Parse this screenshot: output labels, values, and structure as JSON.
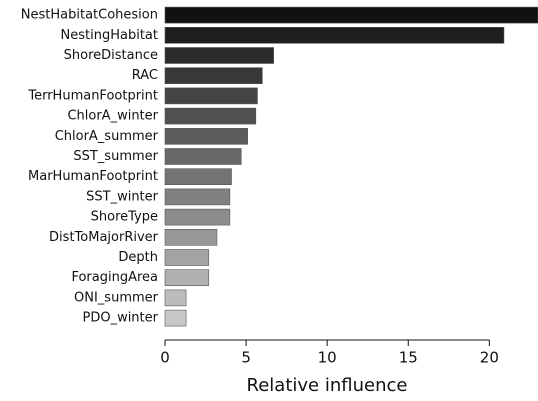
{
  "chart_data": {
    "type": "barh",
    "x_label": "Relative influence",
    "categories": [
      "NestHabitatCohesion",
      "NestingHabitat",
      "ShoreDistance",
      "RAC",
      "TerrHumanFootprint",
      "ChlorA_winter",
      "ChlorA_summer",
      "SST_summer",
      "MarHumanFootprint",
      "SST_winter",
      "ShoreType",
      "DistToMajorRiver",
      "Depth",
      "ForagingArea",
      "ONI_summer",
      "PDO_winter"
    ],
    "values": [
      23.0,
      20.9,
      6.7,
      6.0,
      5.7,
      5.6,
      5.1,
      4.7,
      4.1,
      4.0,
      4.0,
      3.2,
      2.7,
      2.7,
      1.3,
      1.3
    ],
    "colors": [
      "#111111",
      "#1e1e1e",
      "#2b2b2b",
      "#383838",
      "#444444",
      "#505050",
      "#5c5c5c",
      "#686868",
      "#747474",
      "#808080",
      "#8c8c8c",
      "#989898",
      "#a4a4a4",
      "#b0b0b0",
      "#bcbcbc",
      "#c8c8c8"
    ],
    "xlim": [
      0,
      23
    ],
    "xticks": [
      0,
      5,
      10,
      15,
      20
    ]
  }
}
